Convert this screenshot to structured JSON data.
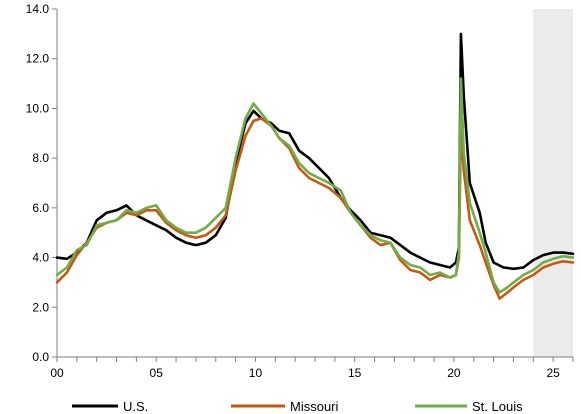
{
  "chart_data": {
    "type": "line",
    "title": "",
    "xlabel": "",
    "ylabel": "",
    "ylim": [
      0,
      14
    ],
    "xlim": [
      2000,
      2026
    ],
    "yticks": [
      0,
      2,
      4,
      6,
      8,
      10,
      12,
      14
    ],
    "yticks_labels": [
      "0.0",
      "2.0",
      "4.0",
      "6.0",
      "8.0",
      "10.0",
      "12.0",
      "14.0"
    ],
    "xtick_values": [
      2000,
      2005,
      2010,
      2015,
      2020,
      2025
    ],
    "xticks_labels": [
      "00",
      "05",
      "10",
      "15",
      "20",
      "25"
    ],
    "minor_xtick_values": [
      2000,
      2001,
      2002,
      2003,
      2004,
      2005,
      2006,
      2007,
      2008,
      2009,
      2010,
      2011,
      2012,
      2013,
      2014,
      2015,
      2016,
      2017,
      2018,
      2019,
      2020,
      2021,
      2022,
      2023,
      2024,
      2025,
      2026
    ],
    "grid": false,
    "legend_position": "bottom",
    "shaded_region": [
      2024.0,
      2026
    ],
    "shaded_color": "#ebebeb",
    "series": [
      {
        "name": "U.S.",
        "color": "#000000",
        "points": [
          [
            2000,
            4.0
          ],
          [
            2000.5,
            3.95
          ],
          [
            2001,
            4.2
          ],
          [
            2001.5,
            4.6
          ],
          [
            2002,
            5.5
          ],
          [
            2002.5,
            5.8
          ],
          [
            2003,
            5.9
          ],
          [
            2003.5,
            6.1
          ],
          [
            2004,
            5.7
          ],
          [
            2004.5,
            5.5
          ],
          [
            2005,
            5.3
          ],
          [
            2005.5,
            5.1
          ],
          [
            2006,
            4.8
          ],
          [
            2006.5,
            4.6
          ],
          [
            2007,
            4.5
          ],
          [
            2007.5,
            4.6
          ],
          [
            2008,
            4.9
          ],
          [
            2008.5,
            5.6
          ],
          [
            2009,
            7.8
          ],
          [
            2009.5,
            9.4
          ],
          [
            2009.9,
            9.9
          ],
          [
            2010.3,
            9.6
          ],
          [
            2010.8,
            9.4
          ],
          [
            2011.2,
            9.1
          ],
          [
            2011.7,
            9.0
          ],
          [
            2012.2,
            8.3
          ],
          [
            2012.7,
            8.0
          ],
          [
            2013.2,
            7.6
          ],
          [
            2013.7,
            7.2
          ],
          [
            2014.3,
            6.4
          ],
          [
            2014.8,
            5.9
          ],
          [
            2015.3,
            5.5
          ],
          [
            2015.8,
            5.0
          ],
          [
            2016.3,
            4.9
          ],
          [
            2016.8,
            4.8
          ],
          [
            2017.3,
            4.5
          ],
          [
            2017.8,
            4.2
          ],
          [
            2018.3,
            4.0
          ],
          [
            2018.8,
            3.8
          ],
          [
            2019.3,
            3.7
          ],
          [
            2019.8,
            3.6
          ],
          [
            2020.1,
            3.8
          ],
          [
            2020.25,
            4.4
          ],
          [
            2020.35,
            13.0
          ],
          [
            2020.5,
            10.5
          ],
          [
            2020.8,
            7.0
          ],
          [
            2021.3,
            5.8
          ],
          [
            2021.6,
            4.6
          ],
          [
            2022,
            3.8
          ],
          [
            2022.5,
            3.6
          ],
          [
            2023,
            3.55
          ],
          [
            2023.5,
            3.6
          ],
          [
            2024,
            3.9
          ],
          [
            2024.5,
            4.1
          ],
          [
            2025,
            4.2
          ],
          [
            2025.5,
            4.2
          ],
          [
            2026,
            4.15
          ]
        ]
      },
      {
        "name": "Missouri",
        "color": "#c65911",
        "points": [
          [
            2000,
            3.0
          ],
          [
            2000.5,
            3.4
          ],
          [
            2001,
            4.1
          ],
          [
            2001.5,
            4.6
          ],
          [
            2002,
            5.2
          ],
          [
            2002.5,
            5.4
          ],
          [
            2003,
            5.5
          ],
          [
            2003.5,
            5.8
          ],
          [
            2004,
            5.7
          ],
          [
            2004.5,
            5.9
          ],
          [
            2005,
            5.9
          ],
          [
            2005.5,
            5.4
          ],
          [
            2006,
            5.1
          ],
          [
            2006.5,
            4.9
          ],
          [
            2007,
            4.8
          ],
          [
            2007.5,
            4.9
          ],
          [
            2008,
            5.2
          ],
          [
            2008.5,
            5.7
          ],
          [
            2009,
            7.5
          ],
          [
            2009.5,
            8.9
          ],
          [
            2009.9,
            9.5
          ],
          [
            2010.3,
            9.6
          ],
          [
            2010.8,
            9.3
          ],
          [
            2011.2,
            8.8
          ],
          [
            2011.7,
            8.4
          ],
          [
            2012.2,
            7.6
          ],
          [
            2012.7,
            7.2
          ],
          [
            2013.2,
            7.0
          ],
          [
            2013.7,
            6.8
          ],
          [
            2014.3,
            6.4
          ],
          [
            2014.8,
            5.8
          ],
          [
            2015.3,
            5.3
          ],
          [
            2015.8,
            4.8
          ],
          [
            2016.3,
            4.5
          ],
          [
            2016.8,
            4.6
          ],
          [
            2017.3,
            3.9
          ],
          [
            2017.8,
            3.5
          ],
          [
            2018.3,
            3.4
          ],
          [
            2018.8,
            3.1
          ],
          [
            2019.3,
            3.3
          ],
          [
            2019.8,
            3.2
          ],
          [
            2020.1,
            3.3
          ],
          [
            2020.25,
            4.0
          ],
          [
            2020.35,
            9.2
          ],
          [
            2020.5,
            7.5
          ],
          [
            2020.8,
            5.5
          ],
          [
            2021.3,
            4.5
          ],
          [
            2021.6,
            3.8
          ],
          [
            2022,
            2.9
          ],
          [
            2022.3,
            2.35
          ],
          [
            2022.7,
            2.6
          ],
          [
            2023,
            2.8
          ],
          [
            2023.5,
            3.1
          ],
          [
            2024,
            3.3
          ],
          [
            2024.5,
            3.6
          ],
          [
            2025,
            3.75
          ],
          [
            2025.5,
            3.85
          ],
          [
            2026,
            3.8
          ]
        ]
      },
      {
        "name": "St. Louis",
        "color": "#70ad47",
        "points": [
          [
            2000,
            3.3
          ],
          [
            2000.5,
            3.6
          ],
          [
            2001,
            4.3
          ],
          [
            2001.5,
            4.5
          ],
          [
            2002,
            5.3
          ],
          [
            2002.5,
            5.4
          ],
          [
            2003,
            5.5
          ],
          [
            2003.5,
            5.9
          ],
          [
            2004,
            5.8
          ],
          [
            2004.5,
            6.0
          ],
          [
            2005,
            6.1
          ],
          [
            2005.5,
            5.5
          ],
          [
            2006,
            5.2
          ],
          [
            2006.5,
            5.0
          ],
          [
            2007,
            5.0
          ],
          [
            2007.5,
            5.2
          ],
          [
            2008,
            5.6
          ],
          [
            2008.5,
            6.0
          ],
          [
            2009,
            8.0
          ],
          [
            2009.5,
            9.6
          ],
          [
            2009.9,
            10.2
          ],
          [
            2010.3,
            9.8
          ],
          [
            2010.8,
            9.3
          ],
          [
            2011.2,
            8.8
          ],
          [
            2011.7,
            8.5
          ],
          [
            2012.2,
            7.8
          ],
          [
            2012.7,
            7.4
          ],
          [
            2013.2,
            7.2
          ],
          [
            2013.7,
            7.0
          ],
          [
            2014.3,
            6.7
          ],
          [
            2014.8,
            5.8
          ],
          [
            2015.3,
            5.3
          ],
          [
            2015.8,
            4.9
          ],
          [
            2016.3,
            4.7
          ],
          [
            2016.8,
            4.6
          ],
          [
            2017.3,
            4.0
          ],
          [
            2017.8,
            3.7
          ],
          [
            2018.3,
            3.6
          ],
          [
            2018.8,
            3.3
          ],
          [
            2019.3,
            3.4
          ],
          [
            2019.8,
            3.2
          ],
          [
            2020.1,
            3.3
          ],
          [
            2020.25,
            4.2
          ],
          [
            2020.35,
            11.2
          ],
          [
            2020.5,
            8.2
          ],
          [
            2020.8,
            6.2
          ],
          [
            2021.3,
            5.0
          ],
          [
            2021.6,
            4.2
          ],
          [
            2022,
            3.0
          ],
          [
            2022.3,
            2.6
          ],
          [
            2022.7,
            2.8
          ],
          [
            2023,
            3.0
          ],
          [
            2023.5,
            3.3
          ],
          [
            2024,
            3.5
          ],
          [
            2024.5,
            3.8
          ],
          [
            2025,
            3.95
          ],
          [
            2025.5,
            4.05
          ],
          [
            2026,
            4.0
          ]
        ]
      }
    ]
  }
}
